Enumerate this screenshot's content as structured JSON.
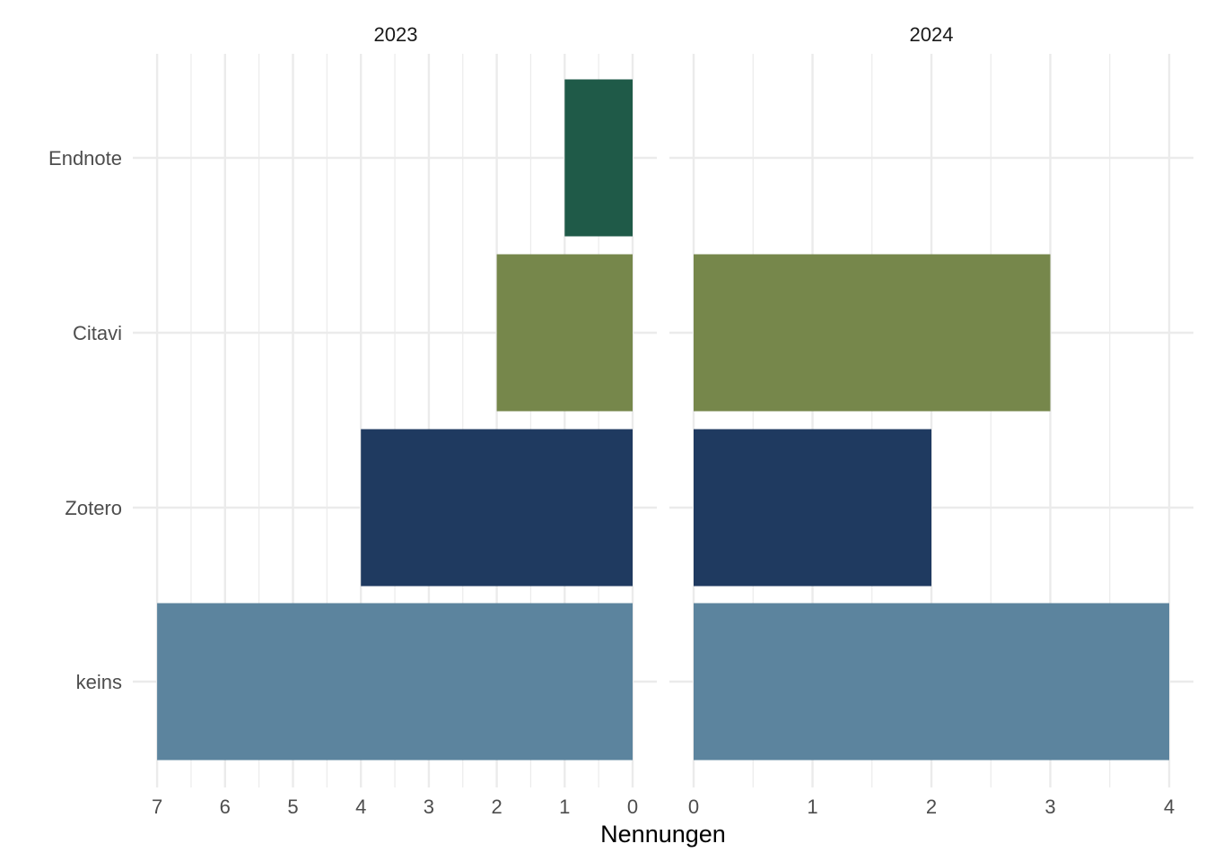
{
  "chart_data": {
    "type": "bar",
    "orientation": "horizontal",
    "categories": [
      "Endnote",
      "Citavi",
      "Zotero",
      "keins"
    ],
    "category_colors": {
      "Endnote": "#1f5a48",
      "Citavi": "#76874b",
      "Zotero": "#1f3a60",
      "keins": "#5c849e"
    },
    "xlabel": "Nennungen",
    "ylabel": "",
    "grid": true,
    "panels": [
      {
        "title": "2023",
        "direction": "reversed",
        "xlim": [
          0,
          7
        ],
        "ticks": [
          "7",
          "6",
          "5",
          "4",
          "3",
          "2",
          "1",
          "0"
        ],
        "values": [
          1,
          2,
          4,
          7
        ]
      },
      {
        "title": "2024",
        "direction": "normal",
        "xlim": [
          0,
          4
        ],
        "ticks": [
          "0",
          "1",
          "2",
          "3",
          "4"
        ],
        "values": [
          0,
          3,
          2,
          4
        ]
      }
    ]
  }
}
